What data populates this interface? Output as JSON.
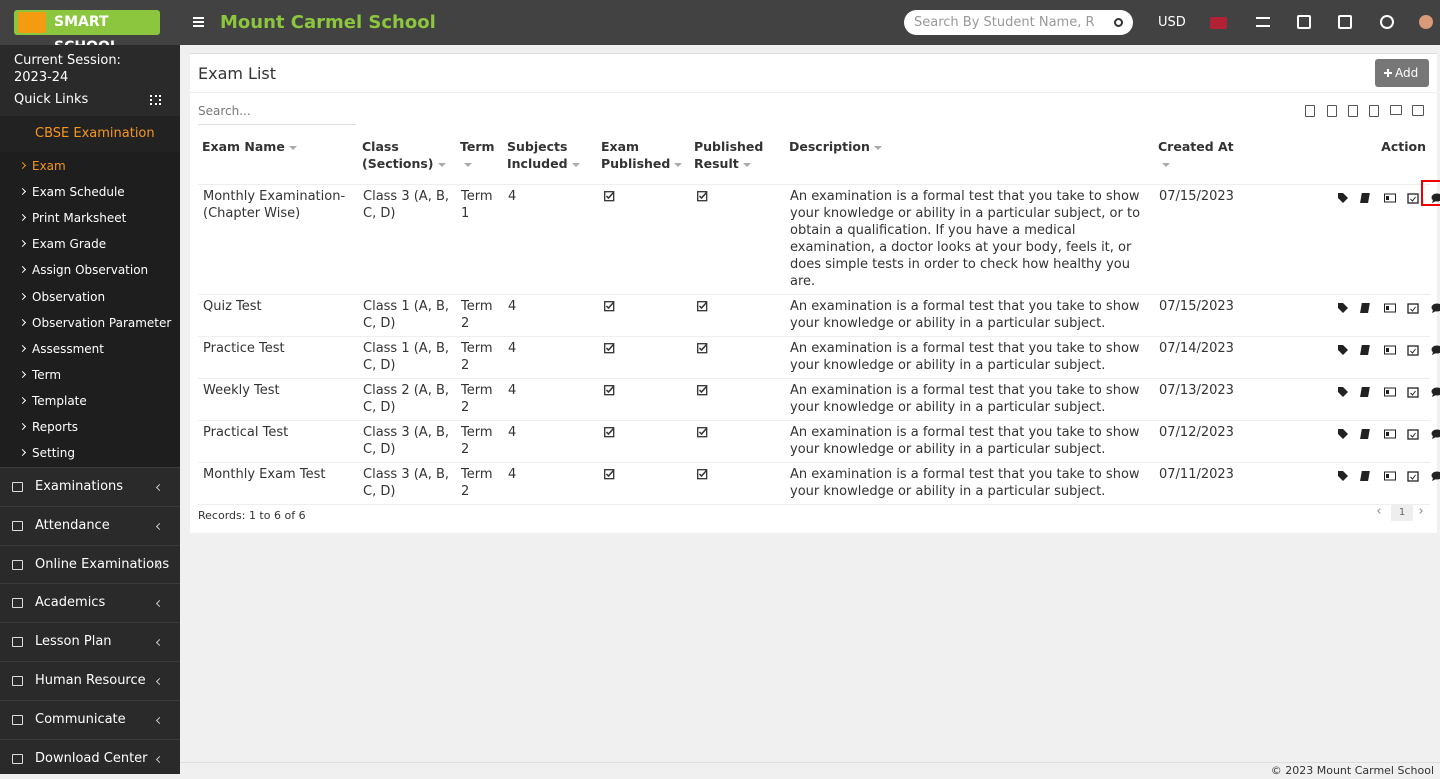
{
  "header": {
    "logo": "SMART SCHOOL",
    "school_name": "Mount Carmel School",
    "search_placeholder": "Search By Student Name, R",
    "currency": "USD"
  },
  "sidebar": {
    "session_label": "Current Session:",
    "session": "2023-24",
    "quick_links": "Quick Links",
    "active_menu": "CBSE Examination",
    "submenu": [
      "Exam",
      "Exam Schedule",
      "Print Marksheet",
      "Exam Grade",
      "Assign Observation",
      "Observation",
      "Observation Parameter",
      "Assessment",
      "Term",
      "Template",
      "Reports",
      "Setting"
    ],
    "menus": [
      "Examinations",
      "Attendance",
      "Online Examinations",
      "Academics",
      "Lesson Plan",
      "Human Resource",
      "Communicate",
      "Download Center"
    ]
  },
  "content": {
    "title": "Exam List",
    "add": "Add",
    "search_placeholder": "Search...",
    "columns": [
      "Exam Name",
      "Class (Sections)",
      "Term",
      "Subjects Included",
      "Exam Published",
      "Published Result",
      "Description",
      "Created At",
      "Action"
    ],
    "rows": [
      [
        "Monthly Examination-(Chapter Wise)",
        "Class 3 (A, B, C, D)",
        "Term 1",
        "4",
        "An examination is a formal test that you take to show your knowledge or ability in a particular subject, or to obtain a qualification. If you have a medical examination, a doctor looks at your body, feels it, or does simple tests in order to check how healthy you are.",
        "07/15/2023"
      ],
      [
        "Quiz Test",
        "Class 1 (A, B, C, D)",
        "Term 2",
        "4",
        "An examination is a formal test that you take to show your knowledge or ability in a particular subject.",
        "07/15/2023"
      ],
      [
        "Practice Test",
        "Class 1 (A, B, C, D)",
        "Term 2",
        "4",
        "An examination is a formal test that you take to show your knowledge or ability in a particular subject.",
        "07/14/2023"
      ],
      [
        "Weekly Test",
        "Class 2 (A, B, C, D)",
        "Term 2",
        "4",
        "An examination is a formal test that you take to show your knowledge or ability in a particular subject.",
        "07/13/2023"
      ],
      [
        "Practical Test",
        "Class 3 (A, B, C, D)",
        "Term 2",
        "4",
        "An examination is a formal test that you take to show your knowledge or ability in a particular subject.",
        "07/12/2023"
      ],
      [
        "Monthly Exam Test",
        "Class 3 (A, B, C, D)",
        "Term 2",
        "4",
        "An examination is a formal test that you take to show your knowledge or ability in a particular subject.",
        "07/11/2023"
      ]
    ],
    "records": "Records: 1 to 6 of 6",
    "page": "1"
  },
  "footer": "© 2023 Mount Carmel School"
}
